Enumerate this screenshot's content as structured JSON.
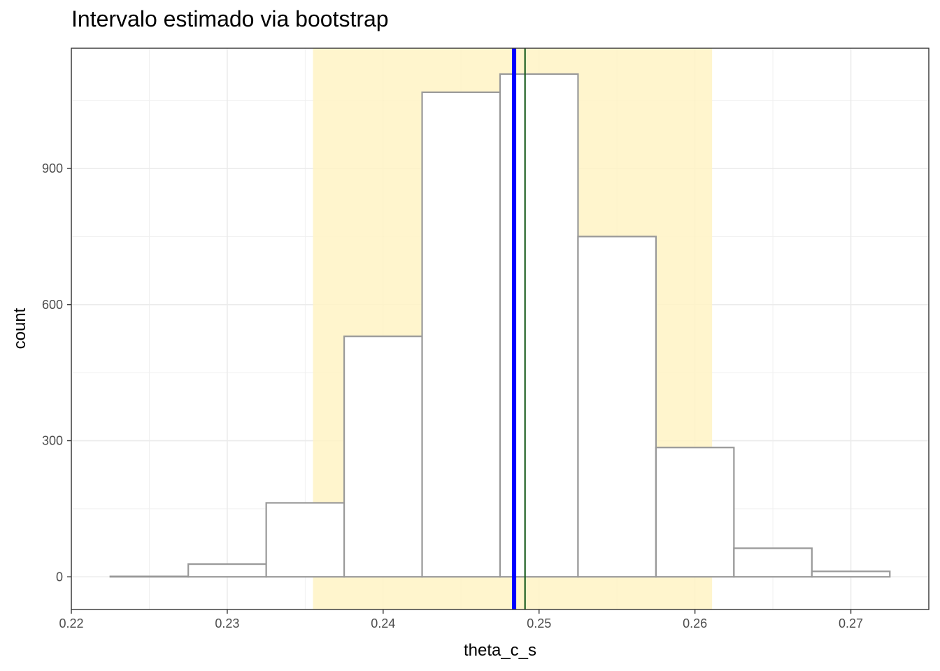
{
  "chart_data": {
    "type": "bar",
    "title": "Intervalo estimado via bootstrap",
    "xlabel": "theta_c_s",
    "ylabel": "count",
    "xlim": [
      0.22,
      0.275
    ],
    "ylim": [
      -72,
      1165
    ],
    "x_ticks": [
      "0.22",
      "0.23",
      "0.24",
      "0.25",
      "0.26",
      "0.27"
    ],
    "y_ticks": [
      "0",
      "300",
      "600",
      "900"
    ],
    "bins": [
      {
        "x0": 0.2225,
        "x1": 0.2275,
        "count": 1
      },
      {
        "x0": 0.2275,
        "x1": 0.2325,
        "count": 28
      },
      {
        "x0": 0.2325,
        "x1": 0.2375,
        "count": 163
      },
      {
        "x0": 0.2375,
        "x1": 0.2425,
        "count": 530
      },
      {
        "x0": 0.2425,
        "x1": 0.2475,
        "count": 1068
      },
      {
        "x0": 0.2475,
        "x1": 0.2525,
        "count": 1108
      },
      {
        "x0": 0.2525,
        "x1": 0.2575,
        "count": 750
      },
      {
        "x0": 0.2575,
        "x1": 0.2625,
        "count": 285
      },
      {
        "x0": 0.2625,
        "x1": 0.2675,
        "count": 63
      },
      {
        "x0": 0.2675,
        "x1": 0.2725,
        "count": 12
      }
    ],
    "interval": {
      "lower": 0.2355,
      "upper": 0.2611,
      "color": "#FFF3C4"
    },
    "vlines": [
      {
        "x": 0.2484,
        "color": "#0000FF",
        "width": "thick"
      },
      {
        "x": 0.2491,
        "color": "#1B5E20",
        "width": "thin"
      }
    ],
    "grid": true,
    "bar_fill": "#FFFFFF",
    "bar_stroke": "#999999"
  }
}
